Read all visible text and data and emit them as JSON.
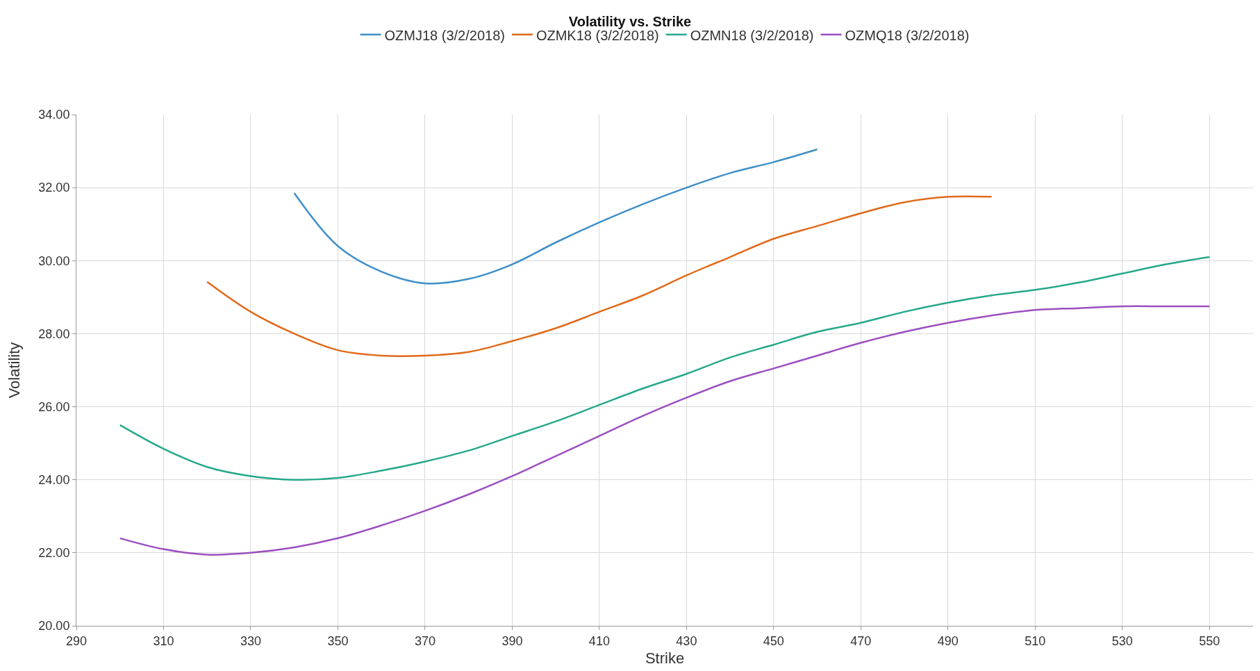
{
  "chart_data": {
    "type": "line",
    "title": "Volatility vs. Strike",
    "xlabel": "Strike",
    "ylabel": "Volatility",
    "xlim": [
      290,
      560
    ],
    "xticks": [
      290,
      310,
      330,
      350,
      370,
      390,
      410,
      430,
      450,
      470,
      490,
      510,
      530,
      550
    ],
    "ylim": [
      20,
      34
    ],
    "yticks": [
      {
        "value": 20,
        "label": "20.00"
      },
      {
        "value": 22,
        "label": "22.00"
      },
      {
        "value": 24,
        "label": "24.00"
      },
      {
        "value": 26,
        "label": "26.00"
      },
      {
        "value": 28,
        "label": "28.00"
      },
      {
        "value": 30,
        "label": "30.00"
      },
      {
        "value": 32,
        "label": "32.00"
      },
      {
        "value": 34,
        "label": "34.00"
      }
    ],
    "grid": true,
    "legend": "top",
    "marker": "none",
    "line_style": "solid",
    "series": [
      {
        "name": "OZMJ18 (3/2/2018)",
        "color": "#3f8fc8",
        "x": [
          340,
          350,
          360,
          370,
          380,
          390,
          400,
          410,
          420,
          430,
          440,
          450,
          460
        ],
        "values": [
          31.85,
          30.4,
          29.7,
          29.38,
          29.5,
          29.9,
          30.5,
          31.05,
          31.55,
          32.0,
          32.4,
          32.7,
          33.05
        ]
      },
      {
        "name": "OZMK18 (3/2/2018)",
        "color": "#e06a1a",
        "x": [
          320,
          330,
          340,
          350,
          360,
          370,
          380,
          390,
          400,
          410,
          420,
          430,
          440,
          450,
          460,
          470,
          480,
          490,
          500
        ],
        "values": [
          29.42,
          28.6,
          28.0,
          27.55,
          27.4,
          27.4,
          27.5,
          27.8,
          28.15,
          28.6,
          29.05,
          29.6,
          30.1,
          30.6,
          30.95,
          31.3,
          31.6,
          31.75,
          31.75
        ]
      },
      {
        "name": "OZMN18 (3/2/2018)",
        "color": "#26a88a",
        "x": [
          300,
          310,
          320,
          330,
          340,
          350,
          360,
          370,
          380,
          390,
          400,
          410,
          420,
          430,
          440,
          450,
          460,
          470,
          480,
          490,
          500,
          510,
          520,
          530,
          540,
          550
        ],
        "values": [
          25.5,
          24.85,
          24.35,
          24.1,
          24.0,
          24.05,
          24.25,
          24.5,
          24.8,
          25.2,
          25.6,
          26.05,
          26.5,
          26.9,
          27.35,
          27.7,
          28.05,
          28.3,
          28.6,
          28.85,
          29.05,
          29.2,
          29.4,
          29.65,
          29.9,
          30.1
        ]
      },
      {
        "name": "OZMQ18 (3/2/2018)",
        "color": "#9b4fc0",
        "x": [
          300,
          310,
          320,
          330,
          340,
          350,
          360,
          370,
          380,
          390,
          400,
          410,
          420,
          430,
          440,
          450,
          460,
          470,
          480,
          490,
          500,
          510,
          520,
          530,
          540,
          550
        ],
        "values": [
          22.4,
          22.1,
          21.95,
          22.0,
          22.15,
          22.4,
          22.75,
          23.15,
          23.6,
          24.1,
          24.65,
          25.2,
          25.75,
          26.25,
          26.7,
          27.05,
          27.4,
          27.75,
          28.05,
          28.3,
          28.5,
          28.65,
          28.7,
          28.75,
          28.75,
          28.75
        ]
      }
    ]
  }
}
